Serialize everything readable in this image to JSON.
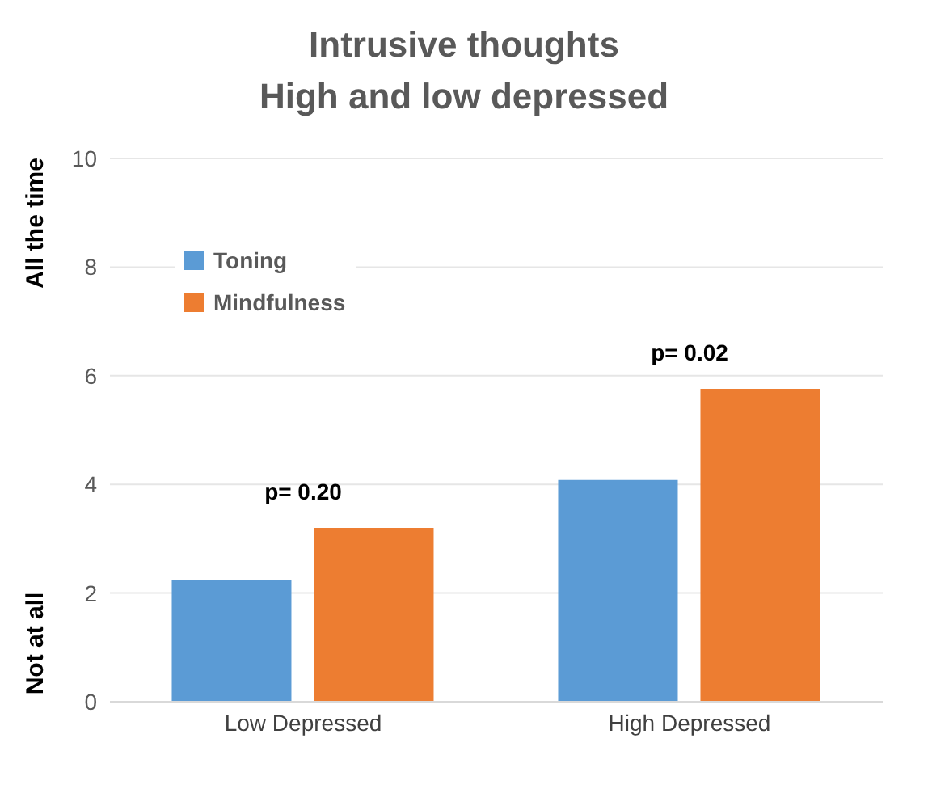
{
  "chart_data": {
    "type": "bar",
    "title": "Intrusive thoughts",
    "subtitle": "High and low depressed",
    "categories": [
      "Low Depressed",
      "High Depressed"
    ],
    "series": [
      {
        "name": "Toning",
        "color": "#5b9bd5",
        "values": [
          2.24,
          4.08
        ]
      },
      {
        "name": "Mindfulness",
        "color": "#ed7d31",
        "values": [
          3.2,
          5.76
        ]
      }
    ],
    "ylim": [
      0,
      10
    ],
    "yticks": [
      0,
      2,
      4,
      6,
      8,
      10
    ],
    "grid": "y",
    "legend": "top left",
    "annotations": [
      "All the time",
      "Not at all",
      "p= 0.20",
      "p= 0.02"
    ]
  }
}
